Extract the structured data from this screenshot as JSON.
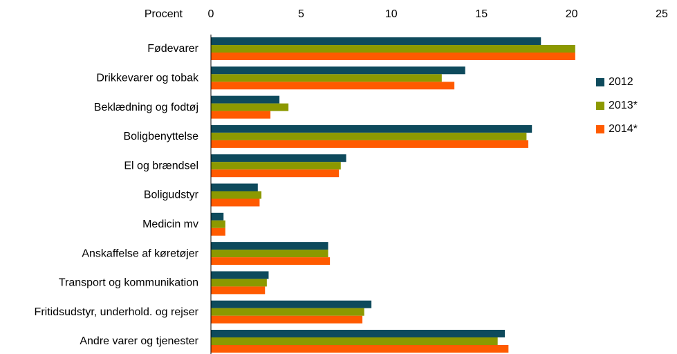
{
  "chart_data": {
    "type": "hbar",
    "axis_label": "Procent",
    "categories": [
      "Fødevarer",
      "Drikkevarer og tobak",
      "Beklædning og fodtøj",
      "Boligbenyttelse",
      "El og brændsel",
      "Boligudstyr",
      "Medicin mv",
      "Anskaffelse af køretøjer",
      "Transport og kommunikation",
      "Fritidsudstyr, underhold. og rejser",
      "Andre varer og tjenester"
    ],
    "series": [
      {
        "name": "2012",
        "color": "#0e4a5c",
        "values": [
          18.3,
          14.1,
          3.8,
          17.8,
          7.5,
          2.6,
          0.7,
          6.5,
          3.2,
          8.9,
          16.3
        ]
      },
      {
        "name": "2013*",
        "color": "#8c9900",
        "values": [
          20.2,
          12.8,
          4.3,
          17.5,
          7.2,
          2.8,
          0.8,
          6.5,
          3.1,
          8.5,
          15.9
        ]
      },
      {
        "name": "2014*",
        "color": "#ff5a00",
        "values": [
          20.2,
          13.5,
          3.3,
          17.6,
          7.1,
          2.7,
          0.8,
          6.6,
          3.0,
          8.4,
          16.5
        ]
      }
    ],
    "xlim": [
      0,
      25
    ],
    "xticks": [
      0,
      5,
      10,
      15,
      20,
      25
    ],
    "legend": "right"
  }
}
